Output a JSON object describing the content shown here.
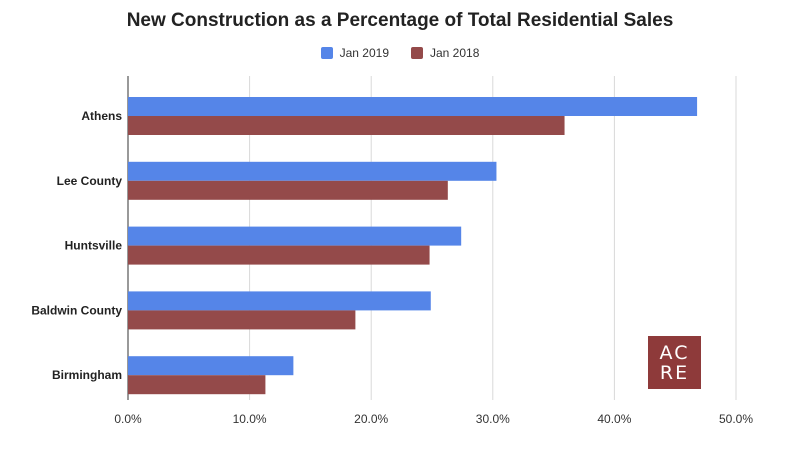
{
  "chart_data": {
    "type": "bar",
    "orientation": "horizontal",
    "title": "New Construction as a Percentage of Total Residential Sales",
    "xlabel": "",
    "ylabel": "",
    "categories": [
      "Athens",
      "Lee County",
      "Huntsville",
      "Baldwin County",
      "Birmingham"
    ],
    "series": [
      {
        "name": "Jan 2019",
        "color": "#5585e8",
        "values": [
          46.8,
          30.3,
          27.4,
          24.9,
          13.6
        ]
      },
      {
        "name": "Jan 2018",
        "color": "#944a4a",
        "values": [
          35.9,
          26.3,
          24.8,
          18.7,
          11.3
        ]
      }
    ],
    "xlim": [
      0,
      50
    ],
    "ticks": [
      "0.0%",
      "10.0%",
      "20.0%",
      "30.0%",
      "40.0%",
      "50.0%"
    ],
    "grid": true,
    "legend_position": "top-center"
  },
  "logo": {
    "line1": "AC",
    "line2": "RE",
    "color": "#8e3a3a"
  }
}
